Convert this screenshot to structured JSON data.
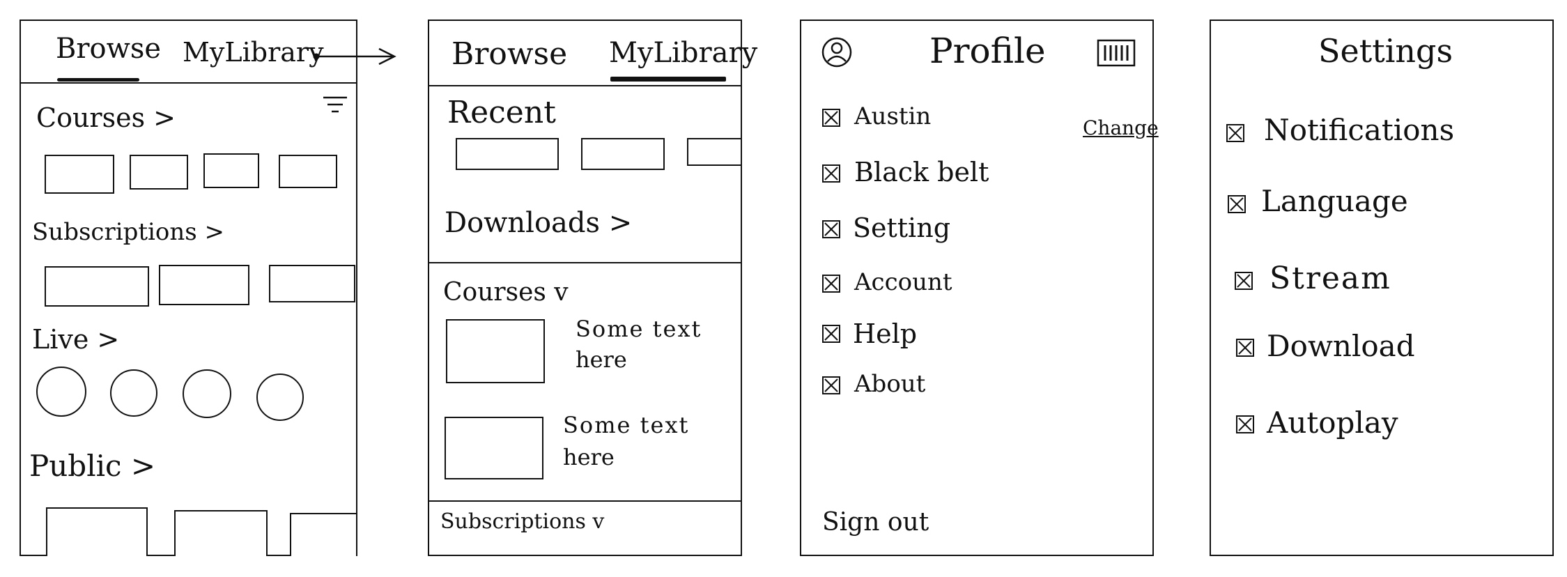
{
  "browse_screen": {
    "tabs": [
      {
        "label": "Browse",
        "active": true
      },
      {
        "label": "MyLibrary",
        "active": false
      }
    ],
    "filter_icon": "filter-icon",
    "sections": {
      "courses": "Courses >",
      "subscriptions": "Subscriptions >",
      "live": "Live >",
      "public": "Public >"
    }
  },
  "library_screen": {
    "tabs": [
      {
        "label": "Browse",
        "active": false
      },
      {
        "label": "MyLibrary",
        "active": true
      }
    ],
    "recent": "Recent",
    "downloads": "Downloads >",
    "courses": "Courses v",
    "items": [
      {
        "text_line1": "Some text",
        "text_line2": "here"
      },
      {
        "text_line1": "Some text",
        "text_line2": "here"
      }
    ],
    "subscriptions": "Subscriptions v"
  },
  "profile_screen": {
    "title": "Profile",
    "avatar_icon": "avatar-icon",
    "barcode_icon": "barcode-icon",
    "change_link": "Change",
    "items": [
      "Austin",
      "Black belt",
      "Setting",
      "Account",
      "Help",
      "About"
    ],
    "sign_out": "Sign out"
  },
  "settings_screen": {
    "title": "Settings",
    "items": [
      "Notifications",
      "Language",
      "Stream",
      "Download",
      "Autoplay"
    ]
  }
}
